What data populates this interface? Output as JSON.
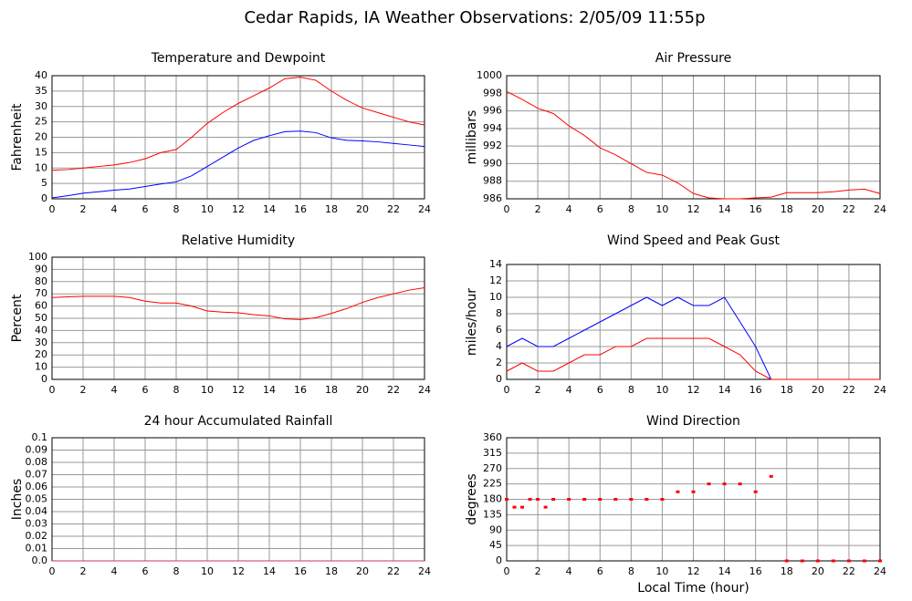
{
  "title": "Cedar Rapids, IA Weather Observations: 2/05/09 11:55p",
  "chart_data": [
    {
      "type": "line",
      "title": "Temperature and Dewpoint",
      "ylabel": "Fahrenheit",
      "x": [
        0,
        1,
        2,
        3,
        4,
        5,
        6,
        7,
        8,
        9,
        10,
        11,
        12,
        13,
        14,
        15,
        16,
        17,
        18,
        19,
        20,
        21,
        22,
        23,
        24
      ],
      "xlim": [
        0,
        24
      ],
      "xticks": [
        0,
        2,
        4,
        6,
        8,
        10,
        12,
        14,
        16,
        18,
        20,
        22,
        24
      ],
      "ylim": [
        0,
        40
      ],
      "yticks": [
        0,
        5,
        10,
        15,
        20,
        25,
        30,
        35,
        40
      ],
      "grid": true,
      "series": [
        {
          "name": "Temperature",
          "color": "#ff0000",
          "values": [
            9.3,
            9.5,
            10,
            10.5,
            11,
            11.8,
            13,
            15,
            16,
            20,
            24.5,
            28,
            31,
            33.5,
            36,
            39,
            39.5,
            38.5,
            35,
            32,
            29.5,
            28,
            26.5,
            25,
            24
          ]
        },
        {
          "name": "Dewpoint",
          "color": "#0000ff",
          "values": [
            0.3,
            1,
            1.8,
            2.3,
            2.8,
            3.2,
            4,
            4.8,
            5.5,
            7.5,
            10.5,
            13.5,
            16.5,
            19,
            20.5,
            21.8,
            22,
            21.5,
            19.8,
            19,
            18.8,
            18.5,
            18,
            17.5,
            17
          ]
        }
      ]
    },
    {
      "type": "line",
      "title": "Air Pressure",
      "ylabel": "millibars",
      "x": [
        0,
        1,
        2,
        3,
        4,
        5,
        6,
        7,
        8,
        9,
        10,
        11,
        12,
        13,
        14,
        15,
        16,
        17,
        18,
        19,
        20,
        21,
        22,
        23,
        24
      ],
      "xlim": [
        0,
        24
      ],
      "xticks": [
        0,
        2,
        4,
        6,
        8,
        10,
        12,
        14,
        16,
        18,
        20,
        22,
        24
      ],
      "ylim": [
        986,
        1000
      ],
      "yticks": [
        986,
        988,
        990,
        992,
        994,
        996,
        998,
        1000
      ],
      "grid": true,
      "series": [
        {
          "name": "Pressure",
          "color": "#ff0000",
          "values": [
            998.2,
            997.3,
            996.3,
            995.7,
            994.3,
            993.2,
            991.8,
            991,
            990,
            989,
            988.7,
            987.8,
            986.6,
            986.1,
            986,
            986,
            986.1,
            986.2,
            986.7,
            986.7,
            986.7,
            986.8,
            987,
            987.1,
            986.6
          ]
        }
      ]
    },
    {
      "type": "line",
      "title": "Relative Humidity",
      "ylabel": "Percent",
      "x": [
        0,
        1,
        2,
        3,
        4,
        5,
        6,
        7,
        8,
        9,
        10,
        11,
        12,
        13,
        14,
        15,
        16,
        17,
        18,
        19,
        20,
        21,
        22,
        23,
        24
      ],
      "xlim": [
        0,
        24
      ],
      "xticks": [
        0,
        2,
        4,
        6,
        8,
        10,
        12,
        14,
        16,
        18,
        20,
        22,
        24
      ],
      "ylim": [
        0,
        100
      ],
      "yticks": [
        0,
        10,
        20,
        30,
        40,
        50,
        60,
        70,
        80,
        90,
        100
      ],
      "grid": true,
      "series": [
        {
          "name": "Humidity",
          "color": "#ff0000",
          "values": [
            67,
            67.5,
            68,
            68,
            68,
            67,
            64,
            62.5,
            62.5,
            60,
            56,
            55,
            54.5,
            53,
            52,
            49.5,
            49,
            50.5,
            54,
            58,
            63,
            67,
            70,
            73,
            75
          ]
        }
      ]
    },
    {
      "type": "line",
      "title": "Wind Speed and Peak Gust",
      "ylabel": "miles/hour",
      "x": [
        0,
        1,
        2,
        3,
        4,
        5,
        6,
        7,
        8,
        9,
        10,
        11,
        12,
        13,
        14,
        15,
        16,
        17,
        18,
        19,
        20,
        21,
        22,
        23,
        24
      ],
      "xlim": [
        0,
        24
      ],
      "xticks": [
        0,
        2,
        4,
        6,
        8,
        10,
        12,
        14,
        16,
        18,
        20,
        22,
        24
      ],
      "ylim": [
        0,
        14
      ],
      "yticks": [
        0,
        2,
        4,
        6,
        8,
        10,
        12,
        14
      ],
      "grid": true,
      "series": [
        {
          "name": "Wind Speed",
          "color": "#0000ff",
          "values": [
            4,
            5,
            4,
            4,
            5,
            6,
            7,
            8,
            9,
            10,
            9,
            10,
            9,
            9,
            10,
            7,
            4,
            0,
            0,
            0,
            0,
            0,
            0,
            0,
            0
          ]
        },
        {
          "name": "Peak Gust",
          "color": "#ff0000",
          "values": [
            1,
            2,
            1,
            1,
            2,
            3,
            3,
            4,
            4,
            5,
            5,
            5,
            5,
            5,
            4,
            3,
            1,
            0,
            0,
            0,
            0,
            0,
            0,
            0,
            0
          ]
        }
      ]
    },
    {
      "type": "line",
      "title": "24 hour Accumulated Rainfall",
      "ylabel": "Inches",
      "x": [
        0,
        1,
        2,
        3,
        4,
        5,
        6,
        7,
        8,
        9,
        10,
        11,
        12,
        13,
        14,
        15,
        16,
        17,
        18,
        19,
        20,
        21,
        22,
        23,
        24
      ],
      "xlim": [
        0,
        24
      ],
      "xticks": [
        0,
        2,
        4,
        6,
        8,
        10,
        12,
        14,
        16,
        18,
        20,
        22,
        24
      ],
      "ylim": [
        0,
        0.1
      ],
      "yticks": [
        {
          "value": 0,
          "label": "0.0"
        },
        0.01,
        0.02,
        0.03,
        0.04,
        0.05,
        0.06,
        0.07,
        0.08,
        0.09,
        0.1
      ],
      "grid": true,
      "series": [
        {
          "name": "Rainfall",
          "color": "#cc3366",
          "values": [
            0,
            0,
            0,
            0,
            0,
            0,
            0,
            0,
            0,
            0,
            0,
            0,
            0,
            0,
            0,
            0,
            0,
            0,
            0,
            0,
            0,
            0,
            0,
            0,
            0
          ]
        }
      ]
    },
    {
      "type": "scatter",
      "title": "Wind Direction",
      "ylabel": "degrees",
      "xlabel": "Local Time (hour)",
      "x": [
        0,
        0.5,
        1,
        1.5,
        2,
        2.5,
        3,
        4,
        5,
        6,
        7,
        8,
        9,
        10,
        11,
        12,
        13,
        14,
        15,
        16,
        17,
        18,
        19,
        20,
        21,
        22,
        23,
        24
      ],
      "xlim": [
        0,
        24
      ],
      "xticks": [
        0,
        2,
        4,
        6,
        8,
        10,
        12,
        14,
        16,
        18,
        20,
        22,
        24
      ],
      "ylim": [
        0,
        360
      ],
      "yticks": [
        0,
        45,
        90,
        135,
        180,
        225,
        270,
        315,
        360
      ],
      "grid": true,
      "series": [
        {
          "name": "Direction",
          "color": "#ff0000",
          "values": [
            180,
            157,
            157,
            180,
            180,
            157,
            180,
            180,
            180,
            180,
            180,
            180,
            180,
            180,
            202,
            202,
            225,
            225,
            225,
            202,
            247,
            0,
            0,
            0,
            0,
            0,
            0,
            0
          ]
        }
      ]
    }
  ]
}
